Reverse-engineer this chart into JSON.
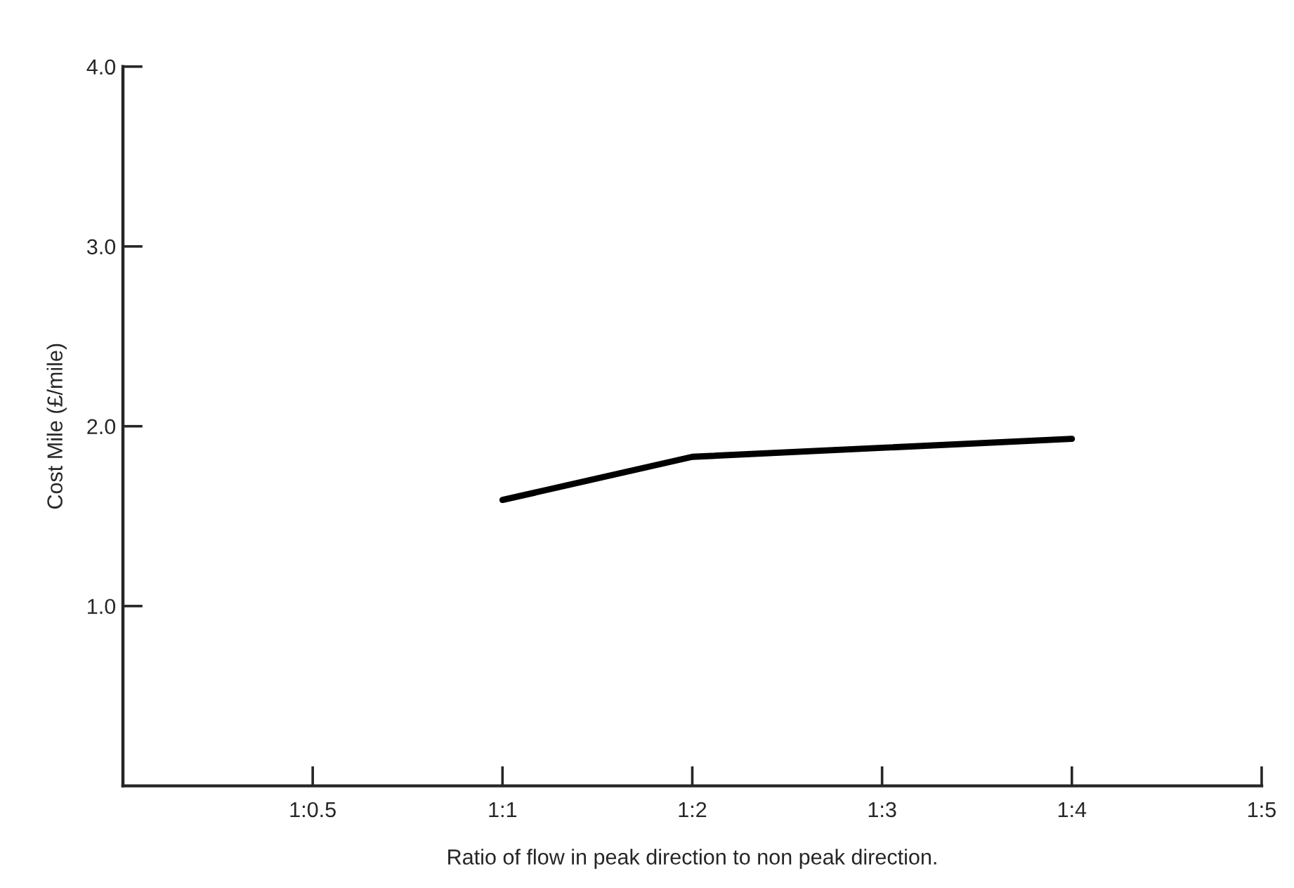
{
  "chart_data": {
    "type": "line",
    "xlabel": "Ratio of flow in peak direction to non peak direction.",
    "ylabel": "Cost Mile (£/mile)",
    "categories": [
      "1:0.5",
      "1:1",
      "1:2",
      "1:3",
      "1:4",
      "1:5"
    ],
    "series": [
      {
        "color": "#000000",
        "values": [
          null,
          1.59,
          1.83,
          1.88,
          1.93,
          null
        ]
      }
    ],
    "ylim": [
      0,
      4
    ],
    "yticks": [
      {
        "value": 1,
        "label": "1.0"
      },
      {
        "value": 2,
        "label": "2.0"
      },
      {
        "value": 3,
        "label": "3.0"
      },
      {
        "value": 4,
        "label": "4.0"
      }
    ],
    "grid": false,
    "legend": false,
    "marker": "none",
    "line_style": "solid"
  }
}
